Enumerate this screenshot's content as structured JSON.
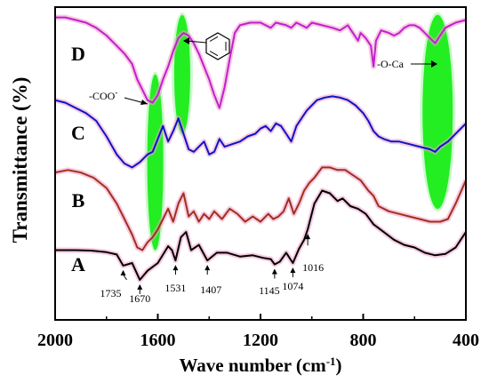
{
  "chart_data": {
    "type": "line",
    "xlabel_main": "Wave number (cm",
    "xlabel_sup": "-1",
    "xlabel_close": ")",
    "ylabel": "Transmittance (%)",
    "xlim": [
      2000,
      400
    ],
    "x_ticks": [
      "2000",
      "1600",
      "1200",
      "800",
      "400"
    ],
    "y_ticks_shown": false,
    "grid": false,
    "colors": {
      "A": "#000000",
      "B": "#a0301c",
      "C": "#0a16c8",
      "D": "#c020d0",
      "halo": "#f0a0c8",
      "band": "#22ee22"
    },
    "series": [
      {
        "name": "A",
        "points": [
          [
            2000,
            0.2
          ],
          [
            1920,
            0.2
          ],
          [
            1860,
            0.18
          ],
          [
            1800,
            0.12
          ],
          [
            1760,
            0.03
          ],
          [
            1735,
            -0.4
          ],
          [
            1700,
            -0.3
          ],
          [
            1670,
            -0.95
          ],
          [
            1640,
            -0.6
          ],
          [
            1600,
            -0.3
          ],
          [
            1560,
            0.35
          ],
          [
            1545,
            0.2
          ],
          [
            1531,
            -0.2
          ],
          [
            1510,
            0.7
          ],
          [
            1490,
            0.9
          ],
          [
            1470,
            0.2
          ],
          [
            1440,
            0.4
          ],
          [
            1407,
            -0.2
          ],
          [
            1370,
            0.1
          ],
          [
            1330,
            0.1
          ],
          [
            1280,
            -0.05
          ],
          [
            1230,
            0.0
          ],
          [
            1190,
            -0.1
          ],
          [
            1160,
            -0.15
          ],
          [
            1145,
            -0.35
          ],
          [
            1125,
            -0.25
          ],
          [
            1100,
            0.1
          ],
          [
            1074,
            -0.3
          ],
          [
            1050,
            0.25
          ],
          [
            1030,
            0.6
          ],
          [
            1016,
            1.0
          ],
          [
            990,
            2.0
          ],
          [
            960,
            2.5
          ],
          [
            930,
            2.4
          ],
          [
            900,
            2.1
          ],
          [
            880,
            2.2
          ],
          [
            850,
            1.9
          ],
          [
            820,
            1.8
          ],
          [
            790,
            1.6
          ],
          [
            760,
            1.2
          ],
          [
            720,
            0.9
          ],
          [
            680,
            0.6
          ],
          [
            640,
            0.4
          ],
          [
            600,
            0.3
          ],
          [
            560,
            0.1
          ],
          [
            520,
            0.0
          ],
          [
            480,
            0.05
          ],
          [
            440,
            0.3
          ],
          [
            400,
            0.9
          ]
        ]
      },
      {
        "name": "B",
        "points": [
          [
            2000,
            3.2
          ],
          [
            1950,
            3.3
          ],
          [
            1900,
            3.2
          ],
          [
            1850,
            3.0
          ],
          [
            1800,
            2.6
          ],
          [
            1760,
            2.0
          ],
          [
            1730,
            1.4
          ],
          [
            1700,
            0.8
          ],
          [
            1680,
            0.3
          ],
          [
            1660,
            0.2
          ],
          [
            1640,
            0.5
          ],
          [
            1620,
            0.7
          ],
          [
            1600,
            1.0
          ],
          [
            1580,
            1.4
          ],
          [
            1560,
            1.8
          ],
          [
            1540,
            1.3
          ],
          [
            1520,
            2.0
          ],
          [
            1500,
            2.4
          ],
          [
            1480,
            1.5
          ],
          [
            1460,
            1.7
          ],
          [
            1440,
            1.3
          ],
          [
            1420,
            1.6
          ],
          [
            1400,
            1.4
          ],
          [
            1380,
            1.7
          ],
          [
            1350,
            1.4
          ],
          [
            1320,
            1.8
          ],
          [
            1290,
            1.6
          ],
          [
            1260,
            1.3
          ],
          [
            1230,
            1.5
          ],
          [
            1200,
            1.3
          ],
          [
            1170,
            1.6
          ],
          [
            1150,
            1.4
          ],
          [
            1130,
            1.5
          ],
          [
            1110,
            1.7
          ],
          [
            1090,
            2.2
          ],
          [
            1070,
            1.6
          ],
          [
            1050,
            2.0
          ],
          [
            1030,
            2.5
          ],
          [
            1010,
            2.8
          ],
          [
            990,
            3.0
          ],
          [
            960,
            3.4
          ],
          [
            930,
            3.4
          ],
          [
            900,
            3.3
          ],
          [
            870,
            3.3
          ],
          [
            840,
            3.1
          ],
          [
            810,
            2.9
          ],
          [
            780,
            2.5
          ],
          [
            760,
            2.3
          ],
          [
            740,
            1.9
          ],
          [
            700,
            1.7
          ],
          [
            660,
            1.6
          ],
          [
            620,
            1.5
          ],
          [
            580,
            1.4
          ],
          [
            540,
            1.3
          ],
          [
            500,
            1.3
          ],
          [
            470,
            1.4
          ],
          [
            440,
            2.0
          ],
          [
            400,
            2.9
          ]
        ]
      },
      {
        "name": "C",
        "points": [
          [
            2000,
            6.0
          ],
          [
            1960,
            5.9
          ],
          [
            1920,
            5.7
          ],
          [
            1880,
            5.5
          ],
          [
            1840,
            5.2
          ],
          [
            1800,
            4.6
          ],
          [
            1760,
            3.9
          ],
          [
            1730,
            3.55
          ],
          [
            1700,
            3.4
          ],
          [
            1670,
            3.6
          ],
          [
            1640,
            3.9
          ],
          [
            1620,
            4.0
          ],
          [
            1600,
            4.5
          ],
          [
            1580,
            5.0
          ],
          [
            1560,
            4.4
          ],
          [
            1540,
            4.8
          ],
          [
            1520,
            5.3
          ],
          [
            1500,
            4.7
          ],
          [
            1480,
            4.1
          ],
          [
            1460,
            4.0
          ],
          [
            1440,
            4.2
          ],
          [
            1420,
            4.4
          ],
          [
            1400,
            3.9
          ],
          [
            1380,
            4.0
          ],
          [
            1360,
            4.5
          ],
          [
            1340,
            4.2
          ],
          [
            1310,
            4.3
          ],
          [
            1280,
            4.4
          ],
          [
            1250,
            4.6
          ],
          [
            1220,
            4.7
          ],
          [
            1200,
            4.9
          ],
          [
            1180,
            5.0
          ],
          [
            1160,
            4.8
          ],
          [
            1140,
            5.1
          ],
          [
            1120,
            5.0
          ],
          [
            1100,
            4.7
          ],
          [
            1080,
            4.4
          ],
          [
            1060,
            5.0
          ],
          [
            1040,
            5.3
          ],
          [
            1020,
            5.6
          ],
          [
            1000,
            5.8
          ],
          [
            980,
            6.0
          ],
          [
            950,
            6.1
          ],
          [
            920,
            6.15
          ],
          [
            890,
            6.1
          ],
          [
            860,
            6.0
          ],
          [
            830,
            5.8
          ],
          [
            800,
            5.5
          ],
          [
            780,
            5.2
          ],
          [
            760,
            4.8
          ],
          [
            740,
            4.6
          ],
          [
            720,
            4.5
          ],
          [
            690,
            4.4
          ],
          [
            660,
            4.4
          ],
          [
            620,
            4.3
          ],
          [
            580,
            4.2
          ],
          [
            540,
            4.1
          ],
          [
            520,
            4.0
          ],
          [
            500,
            4.2
          ],
          [
            470,
            4.4
          ],
          [
            440,
            4.7
          ],
          [
            400,
            5.1
          ]
        ]
      },
      {
        "name": "D",
        "points": [
          [
            2000,
            9.2
          ],
          [
            1960,
            9.2
          ],
          [
            1920,
            9.1
          ],
          [
            1880,
            9.0
          ],
          [
            1840,
            8.8
          ],
          [
            1800,
            8.5
          ],
          [
            1760,
            8.1
          ],
          [
            1730,
            7.8
          ],
          [
            1700,
            7.4
          ],
          [
            1680,
            6.8
          ],
          [
            1660,
            6.4
          ],
          [
            1640,
            6.0
          ],
          [
            1620,
            5.9
          ],
          [
            1600,
            6.2
          ],
          [
            1580,
            6.8
          ],
          [
            1560,
            7.3
          ],
          [
            1540,
            7.9
          ],
          [
            1520,
            8.4
          ],
          [
            1500,
            8.6
          ],
          [
            1480,
            8.5
          ],
          [
            1460,
            8.2
          ],
          [
            1440,
            7.8
          ],
          [
            1420,
            7.3
          ],
          [
            1400,
            6.8
          ],
          [
            1380,
            6.2
          ],
          [
            1360,
            5.7
          ],
          [
            1340,
            6.5
          ],
          [
            1320,
            7.6
          ],
          [
            1300,
            8.6
          ],
          [
            1280,
            8.9
          ],
          [
            1240,
            9.0
          ],
          [
            1200,
            9.0
          ],
          [
            1160,
            8.8
          ],
          [
            1140,
            9.0
          ],
          [
            1100,
            8.9
          ],
          [
            1080,
            8.8
          ],
          [
            1060,
            9.0
          ],
          [
            1040,
            8.9
          ],
          [
            1020,
            8.8
          ],
          [
            1000,
            9.0
          ],
          [
            960,
            8.9
          ],
          [
            920,
            8.8
          ],
          [
            890,
            8.7
          ],
          [
            860,
            8.9
          ],
          [
            840,
            8.6
          ],
          [
            820,
            8.3
          ],
          [
            810,
            8.6
          ],
          [
            790,
            8.4
          ],
          [
            770,
            8.1
          ],
          [
            760,
            7.3
          ],
          [
            750,
            8.3
          ],
          [
            730,
            8.7
          ],
          [
            700,
            8.6
          ],
          [
            680,
            8.5
          ],
          [
            660,
            8.6
          ],
          [
            640,
            8.8
          ],
          [
            620,
            8.9
          ],
          [
            600,
            8.9
          ],
          [
            580,
            8.8
          ],
          [
            560,
            8.6
          ],
          [
            540,
            8.4
          ],
          [
            520,
            8.2
          ],
          [
            500,
            8.5
          ],
          [
            480,
            8.8
          ],
          [
            440,
            9.0
          ],
          [
            400,
            9.1
          ]
        ]
      }
    ],
    "curve_labels": [
      "A",
      "B",
      "C",
      "D"
    ],
    "annotations": [
      {
        "text": "1735",
        "x": 1735,
        "series": "A"
      },
      {
        "text": "1670",
        "x": 1670,
        "series": "A"
      },
      {
        "text": "1531",
        "x": 1531,
        "series": "A"
      },
      {
        "text": "1407",
        "x": 1407,
        "series": "A"
      },
      {
        "text": "1145",
        "x": 1145,
        "series": "A"
      },
      {
        "text": "1074",
        "x": 1074,
        "series": "A"
      },
      {
        "text": "1016",
        "x": 1016,
        "series": "A"
      }
    ],
    "labels": {
      "coo": "-COO",
      "coo_sup": "-",
      "oca": "-O-Ca"
    },
    "highlight_bands": [
      {
        "x": 1610,
        "y_range": [
          0.2,
          7.0
        ]
      },
      {
        "x": 1505,
        "y_range": [
          4.7,
          9.3
        ]
      },
      {
        "x": 510,
        "y_range": [
          1.8,
          9.3
        ]
      }
    ],
    "ylim": [
      -2.5,
      9.6
    ]
  }
}
